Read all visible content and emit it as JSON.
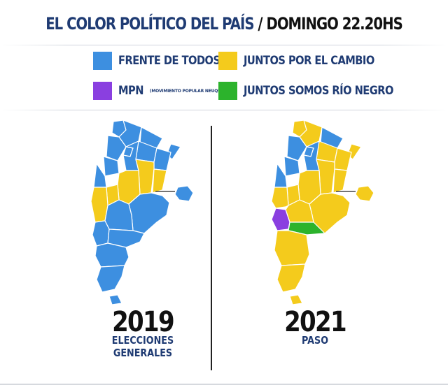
{
  "header": {
    "title_main": "EL COLOR POLÍTICO DEL PAÍS",
    "title_sep": "/",
    "title_time": "DOMINGO 22.20HS"
  },
  "legend": {
    "items": [
      {
        "label": "FRENTE DE TODOS",
        "color": "#3d8fe0"
      },
      {
        "label": "JUNTOS POR EL CAMBIO",
        "color": "#f4cb1c"
      },
      {
        "label": "MPN",
        "sub": "(MOVIMIENTO POPULAR NEUQUINO)",
        "color": "#8a3fe0"
      },
      {
        "label": "JUNTOS SOMOS RÍO NEGRO",
        "color": "#2cb32c"
      }
    ]
  },
  "maps": [
    {
      "year": "2019",
      "caption_line1": "ELECCIONES",
      "caption_line2": "GENERALES",
      "winner_colors": "mostly-frente-de-todos"
    },
    {
      "year": "2021",
      "caption_line1": "PASO",
      "caption_line2": "",
      "winner_colors": "mostly-juntos-por-el-cambio"
    }
  ],
  "colors": {
    "fdt": "#3d8fe0",
    "jxc": "#f4cb1c",
    "mpn": "#8a3fe0",
    "jsrn": "#2cb32c",
    "border": "#ffffff"
  }
}
